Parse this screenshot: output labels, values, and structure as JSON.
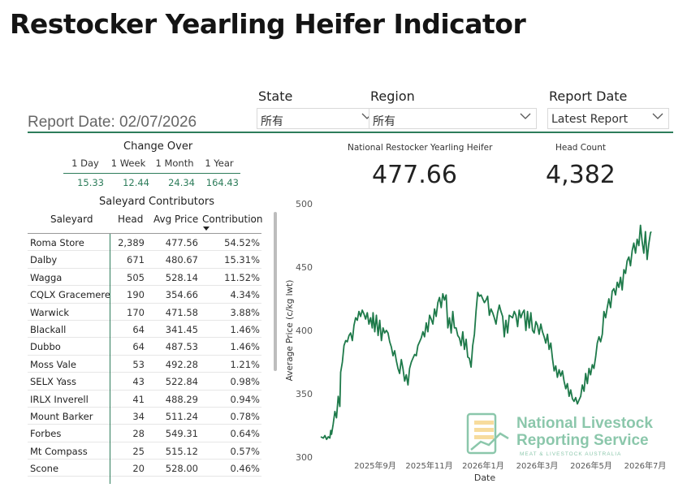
{
  "page": {
    "title": "Restocker Yearling Heifer Indicator",
    "report_date_label": "Report Date: 02/07/2026"
  },
  "filters": [
    {
      "label": "State",
      "value": "所有"
    },
    {
      "label": "Region",
      "value": "所有"
    },
    {
      "label": "Report Date",
      "value": "Latest Report"
    }
  ],
  "change_over": {
    "title": "Change Over",
    "periods": [
      "1 Day",
      "1 Week",
      "1 Month",
      "1 Year"
    ],
    "values": [
      "15.33",
      "12.44",
      "24.34",
      "164.43"
    ]
  },
  "kpis": {
    "national_label": "National Restocker Yearling Heifer",
    "national_value": "477.66",
    "headcount_label": "Head Count",
    "headcount_value": "4,382"
  },
  "saleyard_table": {
    "title": "Saleyard Contributors",
    "columns": [
      "Saleyard",
      "Head",
      "Avg Price",
      "Contribution"
    ],
    "rows": [
      [
        "Roma Store",
        "2,389",
        "477.56",
        "54.52%"
      ],
      [
        "Dalby",
        "671",
        "480.67",
        "15.31%"
      ],
      [
        "Wagga",
        "505",
        "528.14",
        "11.52%"
      ],
      [
        "CQLX Gracemere",
        "190",
        "354.66",
        "4.34%"
      ],
      [
        "Warwick",
        "170",
        "471.58",
        "3.88%"
      ],
      [
        "Blackall",
        "64",
        "341.45",
        "1.46%"
      ],
      [
        "Dubbo",
        "64",
        "487.53",
        "1.46%"
      ],
      [
        "Moss Vale",
        "53",
        "492.28",
        "1.21%"
      ],
      [
        "SELX Yass",
        "43",
        "522.84",
        "0.98%"
      ],
      [
        "IRLX Inverell",
        "41",
        "488.29",
        "0.94%"
      ],
      [
        "Mount Barker",
        "34",
        "511.24",
        "0.78%"
      ],
      [
        "Forbes",
        "28",
        "549.31",
        "0.64%"
      ],
      [
        "Mt Compass",
        "25",
        "515.12",
        "0.57%"
      ],
      [
        "Scone",
        "20",
        "528.00",
        "0.46%"
      ]
    ]
  },
  "watermark": {
    "line1": "National Livestock",
    "line2": "Reporting Service",
    "line3": "MEAT & LIVESTOCK AUSTRALIA"
  },
  "chart_data": {
    "type": "line",
    "xlabel": "Date",
    "ylabel": "Average Price (c/kg lwt)",
    "ylim": [
      300,
      500
    ],
    "yticks": [
      300,
      350,
      400,
      450,
      500
    ],
    "xticks": [
      "2025年9月",
      "2025年11月",
      "2026年1月",
      "2026年3月",
      "2026年5月",
      "2026年7月"
    ],
    "series": [
      {
        "color": "#1e7a4a",
        "x": [
          0,
          3,
          5,
          7,
          9,
          11,
          12,
          13,
          15,
          17,
          19,
          21,
          23,
          24,
          26,
          28,
          30,
          32,
          34,
          36,
          38,
          40,
          42,
          44,
          46,
          48,
          50,
          52,
          54,
          56,
          58,
          60,
          62,
          63,
          65,
          67,
          69,
          71,
          73,
          75,
          77,
          79,
          81,
          83,
          85,
          87,
          89,
          91,
          93,
          95,
          97,
          99,
          101,
          103,
          105,
          107,
          109,
          111,
          113,
          115,
          117,
          119,
          121,
          123,
          125,
          127,
          129,
          131,
          133,
          135,
          137,
          139,
          141,
          143,
          145,
          147,
          149,
          151,
          153,
          155,
          157,
          159,
          161,
          163,
          165,
          167,
          169,
          171,
          173,
          175,
          177,
          179,
          181,
          183,
          185,
          187,
          189,
          191,
          193,
          195,
          197,
          199,
          201,
          203,
          205,
          207,
          209,
          211,
          213,
          215,
          217,
          219,
          221,
          223,
          225,
          227,
          229,
          231,
          233,
          235,
          237,
          239,
          241,
          243,
          245,
          247,
          249,
          251,
          253,
          255,
          257,
          259,
          261,
          263,
          265,
          267,
          269,
          271,
          273,
          275,
          277,
          279,
          281,
          283,
          285,
          287,
          289,
          291,
          293,
          295,
          297,
          299,
          301,
          303,
          305,
          307,
          309,
          311,
          313,
          315,
          317,
          319,
          321,
          323,
          325,
          327,
          329,
          331,
          333,
          335,
          337,
          339,
          341,
          343,
          345,
          347,
          349,
          351,
          353,
          355,
          357,
          359,
          361,
          363,
          365,
          367,
          369,
          371,
          373,
          375,
          377,
          379,
          381,
          383,
          385,
          387,
          389,
          391,
          393,
          395,
          397,
          398
        ],
        "y": [
          316,
          315,
          317,
          314,
          316,
          315,
          321,
          318,
          326,
          336,
          331,
          348,
          340,
          367,
          375,
          388,
          392,
          391,
          396,
          398,
          392,
          404,
          410,
          408,
          415,
          411,
          416,
          413,
          409,
          414,
          405,
          410,
          402,
          414,
          399,
          412,
          396,
          408,
          392,
          402,
          398,
          400,
          398,
          391,
          387,
          380,
          384,
          376,
          370,
          366,
          377,
          370,
          360,
          365,
          357,
          370,
          375,
          378,
          381,
          380,
          388,
          391,
          394,
          399,
          395,
          406,
          399,
          412,
          409,
          405,
          417,
          411,
          422,
          426,
          418,
          429,
          424,
          428,
          402,
          410,
          398,
          415,
          402,
          402,
          396,
          394,
          388,
          399,
          385,
          393,
          379,
          378,
          371,
          388,
          397,
          415,
          430,
          427,
          428,
          425,
          422,
          424,
          427,
          412,
          417,
          414,
          410,
          405,
          414,
          420,
          415,
          411,
          395,
          408,
          398,
          412,
          411,
          410,
          415,
          412,
          403,
          416,
          410,
          414,
          416,
          400,
          415,
          402,
          414,
          400,
          398,
          407,
          404,
          397,
          405,
          399,
          395,
          390,
          397,
          385,
          390,
          378,
          368,
          372,
          363,
          369,
          364,
          368,
          360,
          354,
          358,
          348,
          353,
          346,
          344,
          347,
          342,
          345,
          348,
          357,
          352,
          366,
          358,
          370,
          365,
          373,
          370,
          379,
          390,
          395,
          391,
          397,
          415,
          410,
          418,
          425,
          418,
          431,
          433,
          428,
          438,
          434,
          442,
          432,
          448,
          445,
          455,
          458,
          451,
          463,
          469,
          461,
          472,
          467,
          483,
          470,
          461,
          478,
          456,
          468,
          477,
          478
        ]
      }
    ]
  }
}
